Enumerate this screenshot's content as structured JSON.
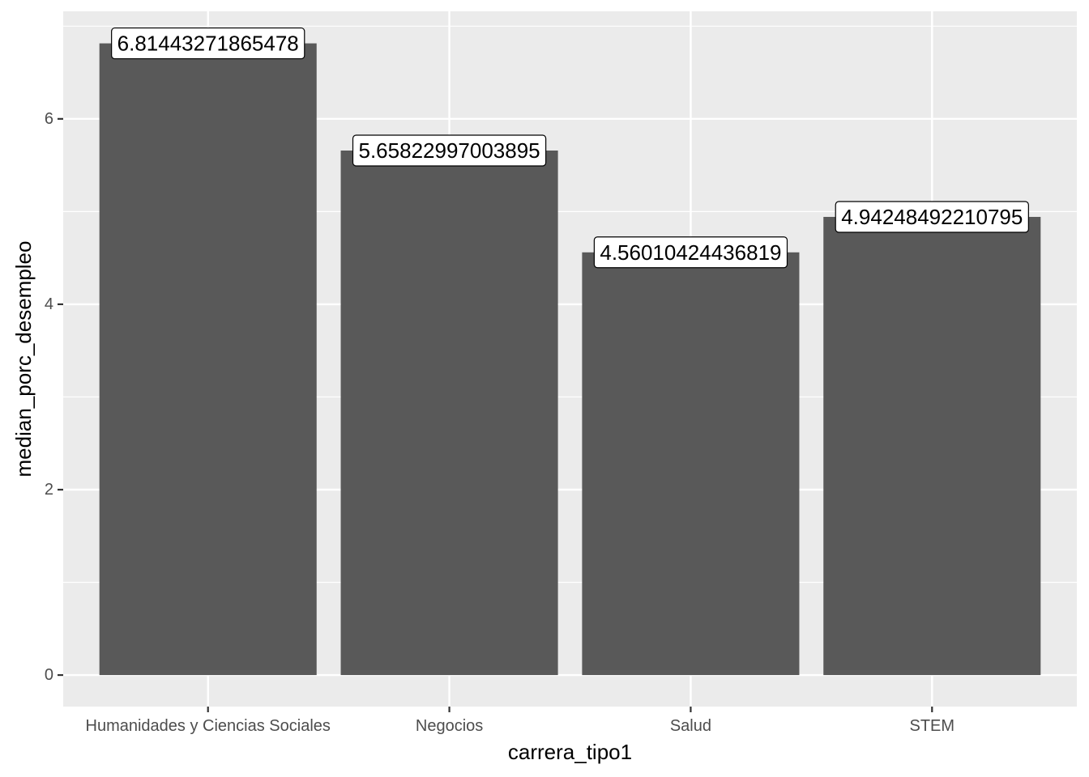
{
  "chart_data": {
    "type": "bar",
    "categories": [
      "Humanidades y Ciencias Sociales",
      "Negocios",
      "Salud",
      "STEM"
    ],
    "values": [
      6.81443271865478,
      5.65822997003895,
      4.56010424436819,
      4.94248492210795
    ],
    "value_labels": [
      "6.81443271865478",
      "5.65822997003895",
      "4.56010424436819",
      "4.94248492210795"
    ],
    "xlabel": "carrera_tipo1",
    "ylabel": "median_porc_desempleo",
    "ylim": [
      -0.34,
      7.16
    ],
    "yticks": [
      0,
      2,
      4,
      6
    ],
    "ytick_labels": [
      "0",
      "2",
      "4",
      "6"
    ],
    "grid": true,
    "colors": {
      "panel": "#ebebeb",
      "grid": "#ffffff",
      "bar": "#595959",
      "label_box": "#ffffff"
    }
  }
}
